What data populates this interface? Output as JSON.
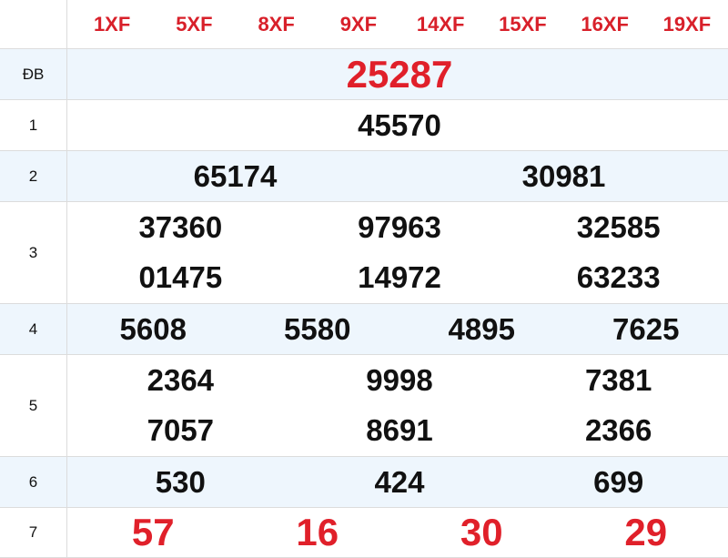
{
  "header": {
    "codes": [
      "1XF",
      "5XF",
      "8XF",
      "9XF",
      "14XF",
      "15XF",
      "16XF",
      "19XF"
    ]
  },
  "prizes": [
    {
      "label": "ĐB",
      "numbers": [
        "25287"
      ]
    },
    {
      "label": "1",
      "numbers": [
        "45570"
      ]
    },
    {
      "label": "2",
      "numbers": [
        "65174",
        "30981"
      ]
    },
    {
      "label": "3",
      "numbers": [
        "37360",
        "97963",
        "32585",
        "01475",
        "14972",
        "63233"
      ]
    },
    {
      "label": "4",
      "numbers": [
        "5608",
        "5580",
        "4895",
        "7625"
      ]
    },
    {
      "label": "5",
      "numbers": [
        "2364",
        "9998",
        "7381",
        "7057",
        "8691",
        "2366"
      ]
    },
    {
      "label": "6",
      "numbers": [
        "530",
        "424",
        "699"
      ]
    },
    {
      "label": "7",
      "numbers": [
        "57",
        "16",
        "30",
        "29"
      ]
    }
  ],
  "colors": {
    "highlight": "#e0202a",
    "row_alt": "#eef6fd"
  }
}
